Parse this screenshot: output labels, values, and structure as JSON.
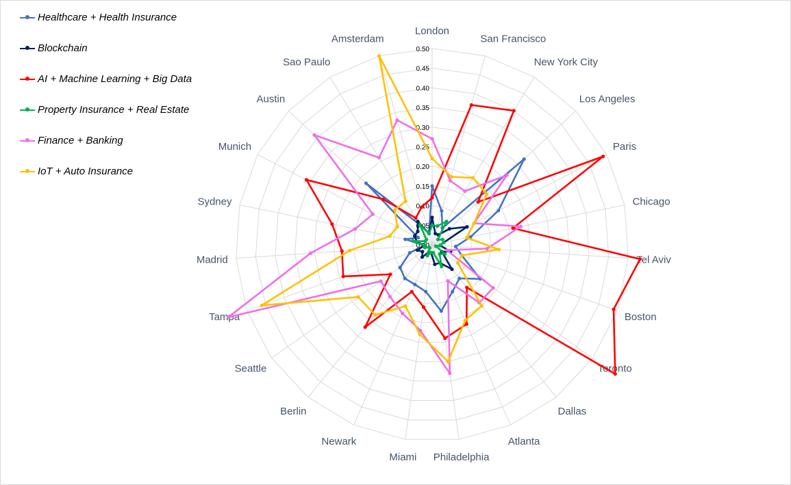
{
  "chart_data": {
    "type": "radar",
    "title": "",
    "rmax": 0.5,
    "r_ticks": [
      "0.00",
      "0.05",
      "0.10",
      "0.15",
      "0.20",
      "0.25",
      "0.30",
      "0.35",
      "0.40",
      "0.45",
      "0.50"
    ],
    "categories": [
      "London",
      "San Francisco",
      "New York City",
      "Los Angeles",
      "Paris",
      "Chicago",
      "Tel Aviv",
      "Boston",
      "Toronto",
      "Dallas",
      "Atlanta",
      "Philadelphia",
      "Miami",
      "Newark",
      "Berlin",
      "Seattle",
      "Tampa",
      "Madrid",
      "Sydney",
      "Munich",
      "Austin",
      "Sao Paulo",
      "Amsterdam"
    ],
    "legend_position": "left",
    "series": [
      {
        "name": "Healthcare + Health Insurance",
        "color": "#4472c4",
        "values": [
          0.15,
          0.09,
          0.05,
          0.32,
          0.19,
          0.1,
          0.06,
          0.08,
          0.15,
          0.11,
          0.13,
          0.17,
          0.12,
          0.11,
          0.11,
          0.1,
          0.06,
          0.02,
          0.07,
          0.04,
          0.23,
          0.06,
          0.03
        ]
      },
      {
        "name": "Blockchain",
        "color": "#002060",
        "values": [
          0.07,
          0.03,
          0.03,
          0.06,
          0.1,
          0.03,
          0.02,
          0.05,
          0.03,
          0.08,
          0.05,
          0.05,
          0.02,
          0.02,
          0.04,
          0.03,
          0.04,
          0.02,
          0.04,
          0.05,
          0.05,
          0.07,
          0.03
        ]
      },
      {
        "name": "AI + Machine Learning + Big Data",
        "color": "#ff0000",
        "values": [
          0.12,
          0.37,
          0.4,
          0.16,
          0.49,
          0.21,
          0.53,
          0.49,
          0.57,
          0.14,
          0.22,
          0.24,
          0.16,
          0.13,
          0.27,
          0.13,
          0.24,
          0.23,
          0.26,
          0.36,
          0.17,
          0.08,
          0.1
        ]
      },
      {
        "name": "Property Insurance + Real Estate",
        "color": "#00b050",
        "values": [
          0.05,
          0.05,
          0.07,
          0.02,
          0.03,
          0.03,
          0.02,
          0.01,
          0.04,
          0.03,
          0.06,
          0.02,
          0.02,
          0.03,
          0.01,
          0.01,
          0.02,
          0.02,
          0.05,
          0.02,
          0.02,
          0.06,
          0.03
        ]
      },
      {
        "name": "Finance + Banking",
        "color": "#ee6ee8",
        "values": [
          0.27,
          0.17,
          0.16,
          0.26,
          0.12,
          0.23,
          0.14,
          0.04,
          0.19,
          0.19,
          0.1,
          0.33,
          0.22,
          0.19,
          0.17,
          0.16,
          0.55,
          0.31,
          0.2,
          0.17,
          0.41,
          0.26,
          0.33
        ]
      },
      {
        "name": "IoT + Auto Insurance",
        "color": "#ffc000",
        "values": [
          0.22,
          0.18,
          0.2,
          0.19,
          0.12,
          0.09,
          0.17,
          0.08,
          0.08,
          0.2,
          0.21,
          0.3,
          0.23,
          0.17,
          0.23,
          0.23,
          0.46,
          0.21,
          0.11,
          0.1,
          0.13,
          0.13,
          0.5
        ]
      }
    ]
  }
}
